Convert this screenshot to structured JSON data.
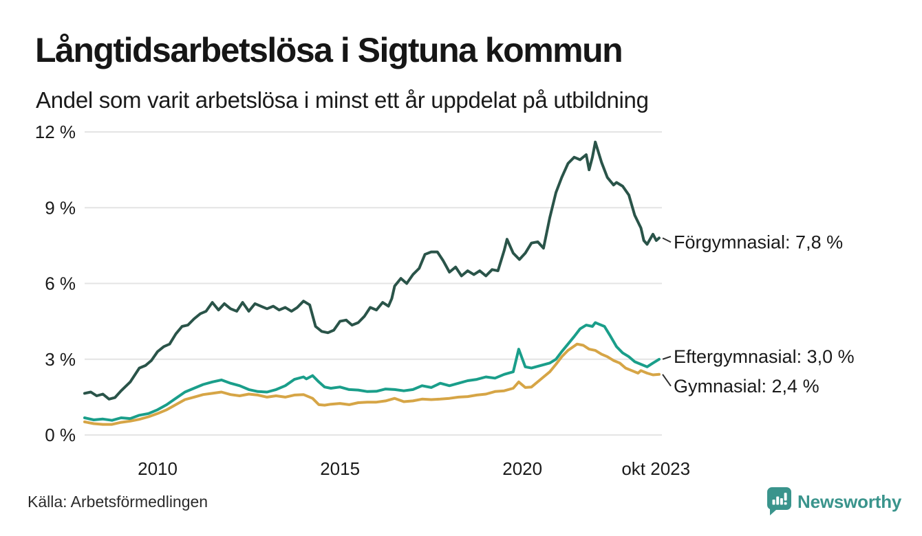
{
  "source": "Källa: Arbetsförmedlingen",
  "branding": {
    "name": "Newsworthy",
    "color": "#3a948c"
  },
  "colors": {
    "grid": "#e4e4e4",
    "text": "#1a1a1a",
    "leader": "#2f2f2f",
    "forgymnasial": "#2a5449",
    "eftergymnasial": "#1a9e8a",
    "gymnasial": "#d6a546"
  },
  "chart_data": {
    "type": "line",
    "title": "Långtidsarbetslösa i Sigtuna kommun",
    "subtitle": "Andel som varit arbetslösa i minst ett år uppdelat på utbildning",
    "x_unit": "decimal_year",
    "x_range": [
      2008.0,
      2023.75
    ],
    "ylim": [
      0,
      12
    ],
    "grid": "horizontal",
    "legend_position": "line-end-labels-right",
    "yticks": [
      {
        "value": 0,
        "label": "0 %"
      },
      {
        "value": 3,
        "label": "3 %"
      },
      {
        "value": 6,
        "label": "6 %"
      },
      {
        "value": 9,
        "label": "9 %"
      },
      {
        "value": 12,
        "label": "12 %"
      }
    ],
    "xticks": [
      {
        "value": 2010,
        "label": "2010"
      },
      {
        "value": 2015,
        "label": "2015"
      },
      {
        "value": 2020,
        "label": "2020"
      },
      {
        "value": 2023.66,
        "label": "okt 2023"
      }
    ],
    "series": [
      {
        "name": "Förgymnasial",
        "color": "#2a5449",
        "end_value_label": "Förgymnasial: 7,8 %",
        "end_value": 7.8,
        "label_dy": 6,
        "points": [
          [
            2008.0,
            1.65
          ],
          [
            2008.17,
            1.7
          ],
          [
            2008.33,
            1.55
          ],
          [
            2008.5,
            1.62
          ],
          [
            2008.67,
            1.42
          ],
          [
            2008.83,
            1.48
          ],
          [
            2009.0,
            1.75
          ],
          [
            2009.25,
            2.1
          ],
          [
            2009.5,
            2.65
          ],
          [
            2009.67,
            2.75
          ],
          [
            2009.83,
            2.95
          ],
          [
            2010.0,
            3.3
          ],
          [
            2010.17,
            3.5
          ],
          [
            2010.33,
            3.6
          ],
          [
            2010.5,
            4.0
          ],
          [
            2010.67,
            4.3
          ],
          [
            2010.83,
            4.35
          ],
          [
            2011.0,
            4.6
          ],
          [
            2011.17,
            4.8
          ],
          [
            2011.33,
            4.9
          ],
          [
            2011.5,
            5.25
          ],
          [
            2011.67,
            4.95
          ],
          [
            2011.83,
            5.2
          ],
          [
            2012.0,
            5.0
          ],
          [
            2012.17,
            4.9
          ],
          [
            2012.33,
            5.25
          ],
          [
            2012.5,
            4.9
          ],
          [
            2012.67,
            5.2
          ],
          [
            2012.83,
            5.1
          ],
          [
            2013.0,
            5.0
          ],
          [
            2013.17,
            5.1
          ],
          [
            2013.33,
            4.95
          ],
          [
            2013.5,
            5.05
          ],
          [
            2013.67,
            4.9
          ],
          [
            2013.83,
            5.05
          ],
          [
            2014.0,
            5.3
          ],
          [
            2014.17,
            5.15
          ],
          [
            2014.33,
            4.3
          ],
          [
            2014.5,
            4.1
          ],
          [
            2014.67,
            4.05
          ],
          [
            2014.83,
            4.15
          ],
          [
            2015.0,
            4.5
          ],
          [
            2015.17,
            4.55
          ],
          [
            2015.33,
            4.35
          ],
          [
            2015.5,
            4.45
          ],
          [
            2015.67,
            4.7
          ],
          [
            2015.83,
            5.05
          ],
          [
            2016.0,
            4.95
          ],
          [
            2016.17,
            5.25
          ],
          [
            2016.33,
            5.1
          ],
          [
            2016.42,
            5.4
          ],
          [
            2016.5,
            5.9
          ],
          [
            2016.67,
            6.2
          ],
          [
            2016.83,
            6.0
          ],
          [
            2017.0,
            6.35
          ],
          [
            2017.17,
            6.6
          ],
          [
            2017.33,
            7.15
          ],
          [
            2017.5,
            7.25
          ],
          [
            2017.67,
            7.25
          ],
          [
            2017.83,
            6.9
          ],
          [
            2018.0,
            6.45
          ],
          [
            2018.17,
            6.65
          ],
          [
            2018.33,
            6.3
          ],
          [
            2018.5,
            6.5
          ],
          [
            2018.67,
            6.35
          ],
          [
            2018.83,
            6.5
          ],
          [
            2019.0,
            6.3
          ],
          [
            2019.17,
            6.55
          ],
          [
            2019.33,
            6.5
          ],
          [
            2019.5,
            7.3
          ],
          [
            2019.58,
            7.75
          ],
          [
            2019.75,
            7.2
          ],
          [
            2019.92,
            6.95
          ],
          [
            2020.08,
            7.2
          ],
          [
            2020.25,
            7.6
          ],
          [
            2020.42,
            7.65
          ],
          [
            2020.58,
            7.4
          ],
          [
            2020.75,
            8.6
          ],
          [
            2020.92,
            9.6
          ],
          [
            2021.08,
            10.2
          ],
          [
            2021.25,
            10.75
          ],
          [
            2021.42,
            11.0
          ],
          [
            2021.58,
            10.9
          ],
          [
            2021.75,
            11.1
          ],
          [
            2021.83,
            10.5
          ],
          [
            2021.92,
            11.0
          ],
          [
            2022.0,
            11.6
          ],
          [
            2022.17,
            10.8
          ],
          [
            2022.33,
            10.2
          ],
          [
            2022.5,
            9.9
          ],
          [
            2022.58,
            10.0
          ],
          [
            2022.75,
            9.85
          ],
          [
            2022.92,
            9.5
          ],
          [
            2023.08,
            8.7
          ],
          [
            2023.25,
            8.2
          ],
          [
            2023.33,
            7.7
          ],
          [
            2023.42,
            7.55
          ],
          [
            2023.58,
            7.95
          ],
          [
            2023.67,
            7.7
          ],
          [
            2023.75,
            7.8
          ]
        ]
      },
      {
        "name": "Eftergymnasial",
        "color": "#1a9e8a",
        "end_value_label": "Eftergymnasial: 3,0 %",
        "end_value": 3.0,
        "label_dy": -4,
        "points": [
          [
            2008.0,
            0.68
          ],
          [
            2008.25,
            0.6
          ],
          [
            2008.5,
            0.63
          ],
          [
            2008.75,
            0.58
          ],
          [
            2009.0,
            0.68
          ],
          [
            2009.25,
            0.65
          ],
          [
            2009.5,
            0.78
          ],
          [
            2009.75,
            0.85
          ],
          [
            2010.0,
            1.0
          ],
          [
            2010.25,
            1.2
          ],
          [
            2010.5,
            1.45
          ],
          [
            2010.75,
            1.7
          ],
          [
            2011.0,
            1.85
          ],
          [
            2011.25,
            2.0
          ],
          [
            2011.5,
            2.1
          ],
          [
            2011.75,
            2.18
          ],
          [
            2012.0,
            2.05
          ],
          [
            2012.25,
            1.95
          ],
          [
            2012.5,
            1.8
          ],
          [
            2012.75,
            1.72
          ],
          [
            2013.0,
            1.7
          ],
          [
            2013.25,
            1.8
          ],
          [
            2013.5,
            1.95
          ],
          [
            2013.75,
            2.2
          ],
          [
            2014.0,
            2.3
          ],
          [
            2014.08,
            2.22
          ],
          [
            2014.25,
            2.35
          ],
          [
            2014.42,
            2.1
          ],
          [
            2014.58,
            1.9
          ],
          [
            2014.75,
            1.85
          ],
          [
            2015.0,
            1.9
          ],
          [
            2015.25,
            1.8
          ],
          [
            2015.5,
            1.78
          ],
          [
            2015.75,
            1.72
          ],
          [
            2016.0,
            1.73
          ],
          [
            2016.25,
            1.82
          ],
          [
            2016.5,
            1.8
          ],
          [
            2016.75,
            1.75
          ],
          [
            2017.0,
            1.8
          ],
          [
            2017.25,
            1.95
          ],
          [
            2017.5,
            1.88
          ],
          [
            2017.75,
            2.05
          ],
          [
            2018.0,
            1.95
          ],
          [
            2018.25,
            2.05
          ],
          [
            2018.5,
            2.15
          ],
          [
            2018.75,
            2.2
          ],
          [
            2019.0,
            2.3
          ],
          [
            2019.25,
            2.25
          ],
          [
            2019.5,
            2.4
          ],
          [
            2019.75,
            2.5
          ],
          [
            2019.9,
            3.4
          ],
          [
            2020.08,
            2.7
          ],
          [
            2020.25,
            2.65
          ],
          [
            2020.5,
            2.75
          ],
          [
            2020.75,
            2.85
          ],
          [
            2020.92,
            3.0
          ],
          [
            2021.08,
            3.3
          ],
          [
            2021.25,
            3.6
          ],
          [
            2021.42,
            3.9
          ],
          [
            2021.58,
            4.2
          ],
          [
            2021.75,
            4.35
          ],
          [
            2021.92,
            4.3
          ],
          [
            2022.0,
            4.45
          ],
          [
            2022.08,
            4.4
          ],
          [
            2022.25,
            4.3
          ],
          [
            2022.42,
            3.9
          ],
          [
            2022.58,
            3.5
          ],
          [
            2022.75,
            3.25
          ],
          [
            2022.92,
            3.1
          ],
          [
            2023.08,
            2.9
          ],
          [
            2023.25,
            2.8
          ],
          [
            2023.42,
            2.7
          ],
          [
            2023.58,
            2.85
          ],
          [
            2023.75,
            3.0
          ]
        ]
      },
      {
        "name": "Gymnasial",
        "color": "#d6a546",
        "end_value_label": "Gymnasial: 2,4 %",
        "end_value": 2.4,
        "label_dy": 17,
        "points": [
          [
            2008.0,
            0.52
          ],
          [
            2008.25,
            0.45
          ],
          [
            2008.5,
            0.42
          ],
          [
            2008.75,
            0.42
          ],
          [
            2009.0,
            0.5
          ],
          [
            2009.25,
            0.55
          ],
          [
            2009.5,
            0.62
          ],
          [
            2009.75,
            0.72
          ],
          [
            2010.0,
            0.85
          ],
          [
            2010.25,
            1.0
          ],
          [
            2010.5,
            1.2
          ],
          [
            2010.75,
            1.4
          ],
          [
            2011.0,
            1.5
          ],
          [
            2011.25,
            1.6
          ],
          [
            2011.5,
            1.65
          ],
          [
            2011.75,
            1.7
          ],
          [
            2012.0,
            1.6
          ],
          [
            2012.25,
            1.55
          ],
          [
            2012.5,
            1.62
          ],
          [
            2012.75,
            1.58
          ],
          [
            2013.0,
            1.5
          ],
          [
            2013.25,
            1.55
          ],
          [
            2013.5,
            1.5
          ],
          [
            2013.75,
            1.58
          ],
          [
            2014.0,
            1.6
          ],
          [
            2014.25,
            1.45
          ],
          [
            2014.42,
            1.2
          ],
          [
            2014.58,
            1.18
          ],
          [
            2014.75,
            1.22
          ],
          [
            2015.0,
            1.25
          ],
          [
            2015.25,
            1.2
          ],
          [
            2015.5,
            1.28
          ],
          [
            2015.75,
            1.3
          ],
          [
            2016.0,
            1.3
          ],
          [
            2016.25,
            1.35
          ],
          [
            2016.5,
            1.45
          ],
          [
            2016.75,
            1.32
          ],
          [
            2017.0,
            1.35
          ],
          [
            2017.25,
            1.42
          ],
          [
            2017.5,
            1.4
          ],
          [
            2017.75,
            1.42
          ],
          [
            2018.0,
            1.45
          ],
          [
            2018.25,
            1.5
          ],
          [
            2018.5,
            1.52
          ],
          [
            2018.75,
            1.58
          ],
          [
            2019.0,
            1.62
          ],
          [
            2019.25,
            1.72
          ],
          [
            2019.5,
            1.75
          ],
          [
            2019.75,
            1.85
          ],
          [
            2019.9,
            2.1
          ],
          [
            2020.08,
            1.88
          ],
          [
            2020.25,
            1.9
          ],
          [
            2020.5,
            2.2
          ],
          [
            2020.75,
            2.5
          ],
          [
            2020.92,
            2.8
          ],
          [
            2021.08,
            3.1
          ],
          [
            2021.25,
            3.35
          ],
          [
            2021.5,
            3.6
          ],
          [
            2021.67,
            3.55
          ],
          [
            2021.83,
            3.4
          ],
          [
            2022.0,
            3.35
          ],
          [
            2022.17,
            3.2
          ],
          [
            2022.33,
            3.1
          ],
          [
            2022.5,
            2.95
          ],
          [
            2022.67,
            2.85
          ],
          [
            2022.83,
            2.65
          ],
          [
            2023.0,
            2.55
          ],
          [
            2023.17,
            2.45
          ],
          [
            2023.25,
            2.55
          ],
          [
            2023.42,
            2.45
          ],
          [
            2023.58,
            2.38
          ],
          [
            2023.75,
            2.4
          ]
        ]
      }
    ]
  }
}
